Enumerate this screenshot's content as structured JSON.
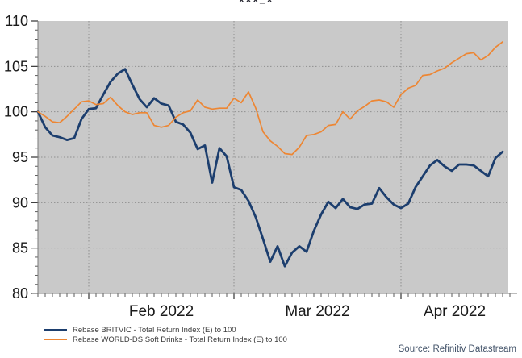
{
  "header": {
    "clipped_title_fragment": "xxx_x"
  },
  "chart_data": {
    "type": "line",
    "x": [
      "2022-01-21",
      "2022-01-24",
      "2022-01-25",
      "2022-01-26",
      "2022-01-27",
      "2022-01-28",
      "2022-01-31",
      "2022-02-01",
      "2022-02-02",
      "2022-02-03",
      "2022-02-04",
      "2022-02-07",
      "2022-02-08",
      "2022-02-09",
      "2022-02-10",
      "2022-02-11",
      "2022-02-14",
      "2022-02-15",
      "2022-02-16",
      "2022-02-17",
      "2022-02-18",
      "2022-02-21",
      "2022-02-22",
      "2022-02-23",
      "2022-02-24",
      "2022-02-25",
      "2022-02-28",
      "2022-03-01",
      "2022-03-02",
      "2022-03-03",
      "2022-03-04",
      "2022-03-07",
      "2022-03-08",
      "2022-03-09",
      "2022-03-10",
      "2022-03-11",
      "2022-03-14",
      "2022-03-15",
      "2022-03-16",
      "2022-03-17",
      "2022-03-18",
      "2022-03-21",
      "2022-03-22",
      "2022-03-23",
      "2022-03-24",
      "2022-03-25",
      "2022-03-28",
      "2022-03-29",
      "2022-03-30",
      "2022-03-31",
      "2022-04-01",
      "2022-04-04",
      "2022-04-05",
      "2022-04-06",
      "2022-04-07",
      "2022-04-08",
      "2022-04-11",
      "2022-04-12",
      "2022-04-13",
      "2022-04-14",
      "2022-04-15",
      "2022-04-18",
      "2022-04-19",
      "2022-04-20",
      "2022-04-21"
    ],
    "series": [
      {
        "name": "Rebase BRITVIC - Total Return Index (E) to 100",
        "color": "#1C3E6E",
        "width": 2.8,
        "values": [
          100.0,
          98.3,
          97.4,
          97.2,
          96.9,
          97.1,
          99.2,
          100.3,
          100.4,
          101.9,
          103.3,
          104.2,
          104.7,
          103.0,
          101.4,
          100.5,
          101.5,
          100.9,
          100.7,
          98.9,
          98.6,
          97.7,
          95.9,
          96.3,
          92.2,
          96.0,
          95.1,
          91.7,
          91.4,
          90.2,
          88.4,
          86.0,
          83.5,
          85.2,
          83.0,
          84.5,
          85.2,
          84.6,
          86.9,
          88.7,
          90.1,
          89.4,
          90.4,
          89.5,
          89.3,
          89.8,
          89.9,
          91.6,
          90.6,
          89.8,
          89.4,
          89.9,
          91.7,
          92.9,
          94.1,
          94.7,
          94.0,
          93.5,
          94.2,
          94.2,
          94.1,
          93.5,
          92.9,
          94.9,
          95.6
        ]
      },
      {
        "name": "Rebase WORLD-DS Soft Drinks - Total Return Index (E) to 100",
        "color": "#ED8633",
        "width": 1.7,
        "values": [
          100.0,
          99.5,
          98.9,
          98.8,
          99.5,
          100.3,
          101.1,
          101.2,
          100.8,
          100.9,
          101.6,
          100.7,
          100.0,
          99.7,
          99.9,
          99.9,
          98.5,
          98.3,
          98.5,
          99.4,
          99.9,
          100.1,
          101.3,
          100.5,
          100.3,
          100.4,
          100.4,
          101.5,
          101.0,
          102.2,
          100.4,
          97.8,
          96.8,
          96.2,
          95.4,
          95.3,
          96.1,
          97.4,
          97.5,
          97.8,
          98.5,
          98.6,
          100.0,
          99.2,
          100.1,
          100.6,
          101.2,
          101.3,
          101.1,
          100.5,
          101.9,
          102.6,
          102.9,
          104.0,
          104.1,
          104.5,
          104.8,
          105.4,
          105.9,
          106.4,
          106.5,
          105.7,
          106.2,
          107.1,
          107.7
        ]
      }
    ],
    "ylim": [
      80,
      110
    ],
    "ytick_step": 5,
    "yticks": [
      80,
      85,
      90,
      95,
      100,
      105,
      110
    ],
    "xtick_labels": [
      "Feb 2022",
      "Mar 2022",
      "Apr 2022"
    ],
    "grid": "dotted",
    "plot_bg": "#C9C9C9",
    "legend_position": "bottom-left"
  },
  "footer": {
    "source": "Source: Refinitiv Datastream"
  }
}
